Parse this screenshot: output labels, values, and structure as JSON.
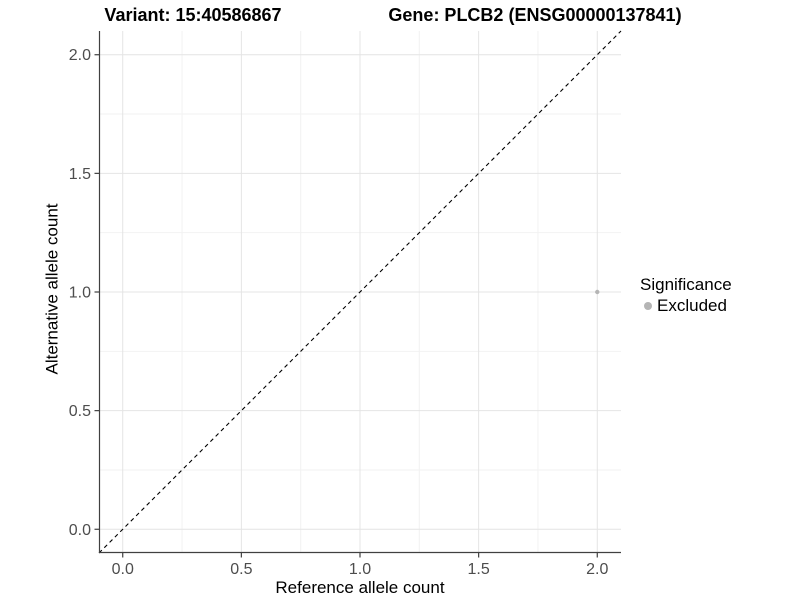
{
  "chart_data": {
    "type": "scatter",
    "titles": {
      "left": "Variant: 15:40586867",
      "right": "Gene: PLCB2 (ENSG00000137841)"
    },
    "xlabel": "Reference allele count",
    "ylabel": "Alternative allele count",
    "xlim": [
      -0.1,
      2.1
    ],
    "ylim": [
      -0.1,
      2.1
    ],
    "xticks": [
      0,
      0.5,
      1,
      1.5,
      2
    ],
    "yticks": [
      0,
      0.5,
      1,
      1.5,
      2
    ],
    "xtick_labels": [
      "0.0",
      "0.5",
      "1.0",
      "1.5",
      "2.0"
    ],
    "ytick_labels": [
      "0.0",
      "0.5",
      "1.0",
      "1.5",
      "2.0"
    ],
    "minor_xticks": [
      0.25,
      0.75,
      1.25,
      1.75
    ],
    "minor_yticks": [
      0.25,
      0.75,
      1.25,
      1.75
    ],
    "grid": "major+minor",
    "identity_line": {
      "kind": "y=x",
      "style": "dashed",
      "color": "#000000"
    },
    "points": [
      {
        "x": 2,
        "y": 1,
        "series": "Excluded",
        "color": "#b5b5b5"
      }
    ],
    "legend": {
      "title": "Significance",
      "position": "right",
      "items": [
        {
          "label": "Excluded",
          "color": "#b5b5b5",
          "marker": "circle"
        }
      ]
    },
    "style": {
      "background": "#ffffff",
      "grid_major_color": "#e4e4e4",
      "grid_minor_color": "#f2f2f2",
      "axis_line_color": "#404040",
      "tick_color": "#404040",
      "tick_label_color": "#4d4d4d",
      "text_color": "#000000"
    }
  }
}
